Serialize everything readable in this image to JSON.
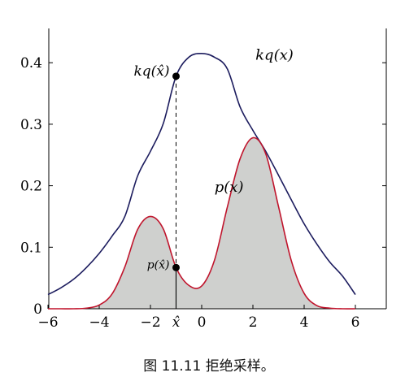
{
  "chart_data": {
    "type": "area",
    "xlim": [
      -6,
      7
    ],
    "ylim": [
      0,
      0.45
    ],
    "x_ticks": [
      -6,
      -4,
      -2,
      0,
      2,
      4,
      6
    ],
    "x_tick_labels": [
      "−6",
      "−4",
      "−2",
      "0",
      "2",
      "4",
      "6"
    ],
    "x_special_tick": {
      "x": -1,
      "label": "x̂"
    },
    "y_ticks": [
      0,
      0.1,
      0.2,
      0.3,
      0.4
    ],
    "y_tick_labels": [
      "0",
      "0.1",
      "0.2",
      "0.3",
      "0.4"
    ],
    "grid": false,
    "series": [
      {
        "name": "kq(x)",
        "color": "#1c1c5e",
        "fill": "none",
        "x": [
          -6,
          -5.5,
          -5,
          -4.5,
          -4,
          -3.5,
          -3,
          -2.5,
          -2,
          -1.5,
          -1,
          -0.5,
          0,
          0.5,
          1,
          1.5,
          2,
          2.5,
          3,
          3.5,
          4,
          4.5,
          5,
          5.5,
          6
        ],
        "y": [
          0.023,
          0.034,
          0.048,
          0.067,
          0.09,
          0.118,
          0.15,
          0.216,
          0.256,
          0.301,
          0.378,
          0.409,
          0.415,
          0.409,
          0.39,
          0.328,
          0.29,
          0.256,
          0.217,
          0.177,
          0.138,
          0.105,
          0.076,
          0.053,
          0.023
        ]
      },
      {
        "name": "p(x)",
        "color": "#c0142c",
        "fill": "#cfd0ce",
        "x": [
          -6,
          -5.5,
          -5,
          -4.5,
          -4,
          -3.5,
          -3,
          -2.5,
          -2,
          -1.5,
          -1,
          -0.5,
          0,
          0.5,
          1,
          1.5,
          2,
          2.5,
          3,
          3.5,
          4,
          4.5,
          5,
          5.5,
          6
        ],
        "y": [
          0.0,
          0.0,
          0.0,
          0.001,
          0.006,
          0.024,
          0.068,
          0.129,
          0.15,
          0.13,
          0.067,
          0.038,
          0.037,
          0.079,
          0.165,
          0.244,
          0.278,
          0.252,
          0.166,
          0.078,
          0.025,
          0.005,
          0.001,
          0.0,
          0.0
        ]
      }
    ],
    "points": [
      {
        "name": "kq_hat",
        "label": "kq(x̂)",
        "x": -1,
        "y": 0.378
      },
      {
        "name": "p_hat",
        "label": "p(x̂)",
        "x": -1,
        "y": 0.067
      }
    ],
    "annotations": [
      {
        "text": "kq(x)",
        "x": 2.1,
        "y": 0.405
      },
      {
        "text": "p(x)",
        "x": 0.5,
        "y": 0.19
      }
    ]
  },
  "caption": "图 11.11 拒绝采样。"
}
